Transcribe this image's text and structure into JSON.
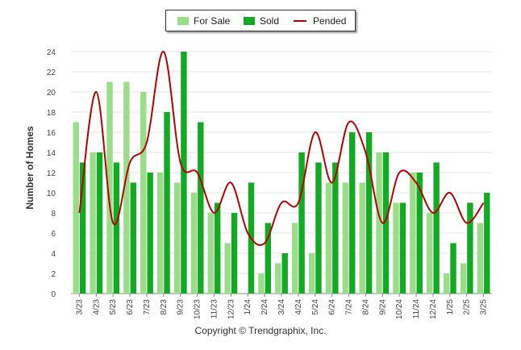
{
  "chart_data": {
    "type": "bar",
    "ylabel": "Number of Homes",
    "xlabel": "",
    "ylim": [
      0,
      24
    ],
    "yticks": [
      0,
      2,
      4,
      6,
      8,
      10,
      12,
      14,
      16,
      18,
      20,
      22,
      24
    ],
    "grid": true,
    "legend_position": "top-center",
    "categories": [
      "3/23",
      "4/23",
      "5/23",
      "6/23",
      "7/23",
      "8/23",
      "9/23",
      "10/23",
      "11/23",
      "12/23",
      "1/24",
      "2/24",
      "3/24",
      "4/24",
      "5/24",
      "6/24",
      "7/24",
      "8/24",
      "9/24",
      "10/24",
      "11/24",
      "12/24",
      "1/25",
      "2/25",
      "3/25"
    ],
    "series": [
      {
        "name": "For Sale",
        "type": "bar",
        "color": "#99dd88",
        "values": [
          17,
          14,
          21,
          21,
          20,
          12,
          11,
          10,
          8,
          5,
          0,
          2,
          3,
          7,
          4,
          11,
          11,
          11,
          14,
          9,
          12,
          8,
          2,
          3,
          7
        ]
      },
      {
        "name": "Sold",
        "type": "bar",
        "color": "#11aa22",
        "values": [
          13,
          14,
          13,
          11,
          12,
          18,
          24,
          17,
          9,
          8,
          11,
          7,
          4,
          14,
          13,
          13,
          16,
          16,
          14,
          9,
          12,
          13,
          5,
          9,
          10
        ]
      },
      {
        "name": "Pended",
        "type": "line",
        "color": "#bb0000",
        "values": [
          8,
          20,
          7,
          13,
          15,
          24,
          13,
          12,
          8,
          11,
          6,
          5,
          9,
          9,
          16,
          11,
          17,
          14,
          7,
          12,
          11,
          8,
          10,
          7,
          9
        ]
      }
    ]
  },
  "footer": {
    "copyright": "Copyright © Trendgraphix, Inc."
  }
}
